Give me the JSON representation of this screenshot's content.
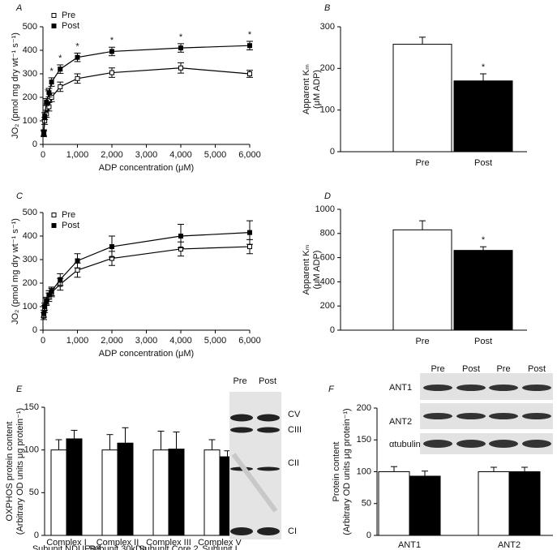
{
  "chart_data": [
    {
      "type": "line",
      "panel": "A",
      "x": [
        25,
        50,
        100,
        175,
        250,
        500,
        1000,
        2000,
        4000,
        6000
      ],
      "xlim": [
        0,
        6000
      ],
      "ylim": [
        0,
        500
      ],
      "xticks": [
        0,
        {
          "value": 1000,
          "label": "1,000"
        },
        {
          "value": 2000,
          "label": "2,000"
        },
        {
          "value": 3000,
          "label": "3,000"
        },
        {
          "value": 4000,
          "label": "4,000"
        },
        {
          "value": 5000,
          "label": "5,000"
        },
        {
          "value": 6000,
          "label": "6,000"
        }
      ],
      "yticks": [
        0,
        100,
        200,
        300,
        400,
        500
      ],
      "xlabel": "ADP concentration (μM)",
      "ylabel": [
        "JO₂ (pmol mg dry wt⁻¹ s⁻¹)"
      ],
      "legend": "upper left",
      "series": [
        {
          "name": "Pre",
          "color": "#000000",
          "marker": "open",
          "values": [
            45,
            100,
            130,
            160,
            200,
            245,
            280,
            305,
            325,
            300
          ],
          "errors": [
            12,
            15,
            15,
            18,
            18,
            20,
            20,
            20,
            22,
            15
          ]
        },
        {
          "name": "Post",
          "color": "#000000",
          "marker": "filled",
          "values": [
            50,
            120,
            180,
            220,
            265,
            320,
            370,
            395,
            410,
            420
          ],
          "errors": [
            12,
            15,
            15,
            18,
            18,
            18,
            18,
            18,
            18,
            18
          ],
          "significance": [
            null,
            "*",
            "*",
            null,
            "*",
            "*",
            "*",
            "*",
            "*",
            "*"
          ]
        }
      ]
    },
    {
      "type": "bar",
      "panel": "B",
      "categories": [
        "Pre",
        "Post"
      ],
      "values": [
        258,
        170
      ],
      "errors": [
        17,
        17
      ],
      "colors": [
        "#ffffff",
        "#000000"
      ],
      "significance": [
        null,
        "*"
      ],
      "ylim": [
        0,
        300
      ],
      "yticks": [
        0,
        100,
        200,
        300
      ],
      "ylabel": [
        "Apparent Kₘ",
        "(μM ADP)"
      ]
    },
    {
      "type": "line",
      "panel": "C",
      "x": [
        25,
        50,
        100,
        175,
        250,
        500,
        1000,
        2000,
        4000,
        6000
      ],
      "xlim": [
        0,
        6000
      ],
      "ylim": [
        0,
        500
      ],
      "xticks": [
        0,
        {
          "value": 1000,
          "label": "1,000"
        },
        {
          "value": 2000,
          "label": "2,000"
        },
        {
          "value": 3000,
          "label": "3,000"
        },
        {
          "value": 4000,
          "label": "4,000"
        },
        {
          "value": 5000,
          "label": "5,000"
        },
        {
          "value": 6000,
          "label": "6,000"
        }
      ],
      "yticks": [
        0,
        100,
        200,
        300,
        400,
        500
      ],
      "xlabel": "ADP concentration (μM)",
      "ylabel": [
        "JO₂ (pmol mg dry wt⁻¹ s⁻¹)"
      ],
      "legend": "upper left",
      "series": [
        {
          "name": "Pre",
          "color": "#000000",
          "marker": "open",
          "values": [
            60,
            90,
            120,
            140,
            160,
            195,
            255,
            305,
            345,
            355
          ],
          "errors": [
            15,
            15,
            15,
            18,
            18,
            25,
            30,
            30,
            30,
            30
          ]
        },
        {
          "name": "Post",
          "color": "#000000",
          "marker": "filled",
          "values": [
            70,
            100,
            125,
            150,
            165,
            215,
            295,
            355,
            400,
            415
          ],
          "errors": [
            15,
            15,
            15,
            18,
            18,
            25,
            30,
            45,
            50,
            50
          ]
        }
      ]
    },
    {
      "type": "bar",
      "panel": "D",
      "categories": [
        "Pre",
        "Post"
      ],
      "values": [
        830,
        660
      ],
      "errors": [
        75,
        30
      ],
      "colors": [
        "#ffffff",
        "#000000"
      ],
      "significance": [
        null,
        "*"
      ],
      "ylim": [
        0,
        1000
      ],
      "yticks": [
        0,
        200,
        400,
        600,
        800,
        1000
      ],
      "ylabel": [
        "Apparent Kₘ",
        "(μM ADP)"
      ]
    },
    {
      "type": "grouped_bar",
      "panel": "E",
      "categories": [
        "Complex I",
        "Complex II",
        "Complex III",
        "Complex V"
      ],
      "category_sublabels": [
        "Subunit NDUFB8",
        "Subunit 30kDa",
        "Subunit Core 2",
        "Subunit I"
      ],
      "series": [
        {
          "color": "#ffffff",
          "values": [
            100,
            100,
            100,
            100
          ],
          "errors": [
            12,
            18,
            22,
            12
          ]
        },
        {
          "color": "#000000",
          "values": [
            113,
            108,
            101,
            92
          ],
          "errors": [
            10,
            18,
            20,
            7
          ]
        }
      ],
      "ylim": [
        0,
        150
      ],
      "yticks": [
        0,
        50,
        100,
        150
      ],
      "ylabel": [
        "OXPHOS protein content",
        "(Arbitrary OD units μg protein⁻¹)"
      ],
      "blot": {
        "columns": [
          "Pre",
          "Post"
        ],
        "rows": [
          "CV",
          "CIII",
          "CII",
          "CI"
        ]
      }
    },
    {
      "type": "grouped_bar",
      "panel": "F",
      "categories": [
        "ANT1",
        "ANT2"
      ],
      "series": [
        {
          "color": "#ffffff",
          "values": [
            100,
            100
          ],
          "errors": [
            8,
            7
          ]
        },
        {
          "color": "#000000",
          "values": [
            93,
            100
          ],
          "errors": [
            8,
            7
          ]
        }
      ],
      "ylim": [
        0,
        200
      ],
      "yticks": [
        0,
        50,
        100,
        150,
        200
      ],
      "ylabel": [
        "Protein content",
        "(Arbitrary OD units μg protein⁻¹)"
      ],
      "blot": {
        "columns": [
          "Pre",
          "Post",
          "Pre",
          "Post"
        ],
        "rows": [
          "ANT1",
          "ANT2",
          "αtubulin"
        ]
      }
    }
  ]
}
